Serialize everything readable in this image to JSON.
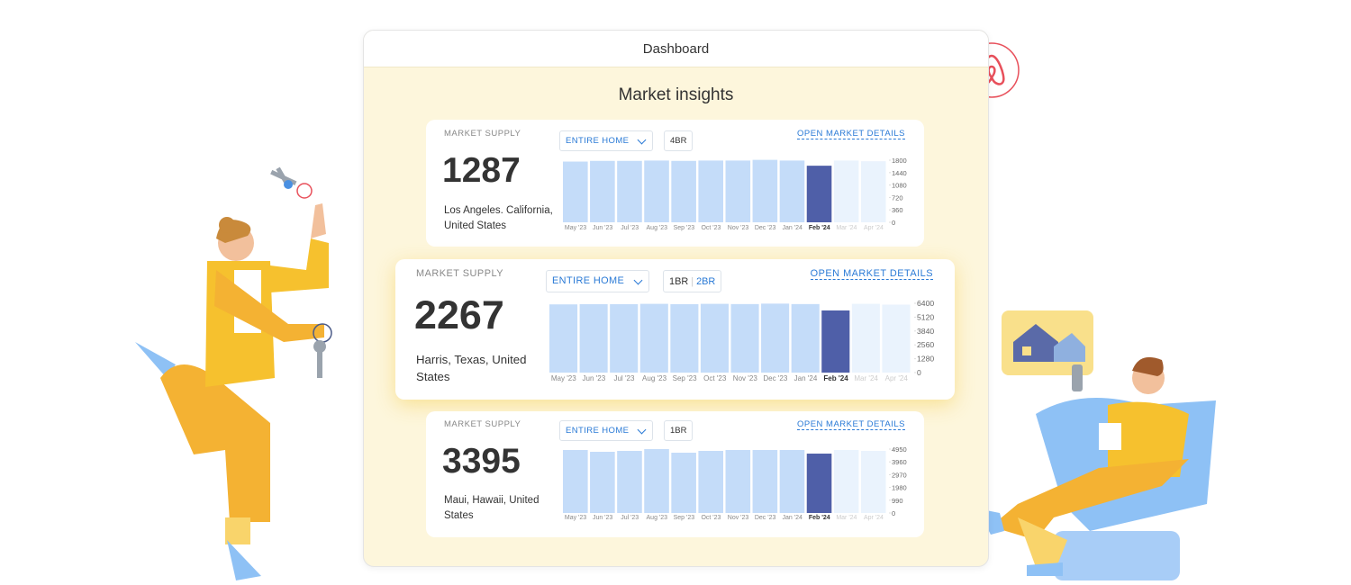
{
  "header": {
    "title": "Dashboard"
  },
  "section_title": "Market insights",
  "cards": [
    {
      "label": "MARKET SUPPLY",
      "value": "1287",
      "location": "Los Angeles. California, United States",
      "dropdown": "ENTIRE HOME",
      "bedrooms": [
        "4BR"
      ],
      "link": "OPEN MARKET DETAILS",
      "chart": {
        "type": "bar",
        "categories": [
          "May '23",
          "Jun '23",
          "Jul '23",
          "Aug '23",
          "Sep '23",
          "Oct '23",
          "Nov '23",
          "Dec '23",
          "Jan '24",
          "Feb '24",
          "Mar '24",
          "Apr '24"
        ],
        "values": [
          1760,
          1780,
          1780,
          1790,
          1780,
          1790,
          1790,
          1810,
          1790,
          1640,
          1790,
          1770
        ],
        "bar_colors": [
          "#c4dcf9",
          "#c4dcf9",
          "#c4dcf9",
          "#c4dcf9",
          "#c4dcf9",
          "#c4dcf9",
          "#c4dcf9",
          "#c4dcf9",
          "#c4dcf9",
          "#4f5fa8",
          "#eaf3fd",
          "#eaf3fd"
        ],
        "ylim": [
          0,
          1800
        ],
        "yticks": [
          0,
          360,
          720,
          1080,
          1440,
          1800
        ]
      }
    },
    {
      "label": "MARKET SUPPLY",
      "value": "2267",
      "location": "Harris, Texas, United States",
      "dropdown": "ENTIRE HOME",
      "bedrooms": [
        "1BR",
        "2BR"
      ],
      "link": "OPEN MARKET DETAILS",
      "chart": {
        "type": "bar",
        "categories": [
          "May '23",
          "Jun '23",
          "Jul '23",
          "Aug '23",
          "Sep '23",
          "Oct '23",
          "Nov '23",
          "Dec '23",
          "Jan '24",
          "Feb '24",
          "Mar '24",
          "Apr '24"
        ],
        "values": [
          6300,
          6320,
          6320,
          6350,
          6320,
          6350,
          6330,
          6370,
          6330,
          5740,
          6350,
          6280
        ],
        "bar_colors": [
          "#c4dcf9",
          "#c4dcf9",
          "#c4dcf9",
          "#c4dcf9",
          "#c4dcf9",
          "#c4dcf9",
          "#c4dcf9",
          "#c4dcf9",
          "#c4dcf9",
          "#4f5fa8",
          "#eaf3fd",
          "#eaf3fd"
        ],
        "ylim": [
          0,
          6400
        ],
        "yticks": [
          0,
          1280,
          2560,
          3840,
          5120,
          6400
        ]
      }
    },
    {
      "label": "MARKET SUPPLY",
      "value": "3395",
      "location": "Maui, Hawaii, United States",
      "dropdown": "ENTIRE HOME",
      "bedrooms": [
        "1BR"
      ],
      "link": "OPEN MARKET DETAILS",
      "chart": {
        "type": "bar",
        "categories": [
          "May '23",
          "Jun '23",
          "Jul '23",
          "Aug '23",
          "Sep '23",
          "Oct '23",
          "Nov '23",
          "Dec '23",
          "Jan '24",
          "Feb '24",
          "Mar '24",
          "Apr '24"
        ],
        "values": [
          4880,
          4740,
          4810,
          4950,
          4670,
          4810,
          4880,
          4880,
          4880,
          4600,
          4880,
          4810
        ],
        "bar_colors": [
          "#c4dcf9",
          "#c4dcf9",
          "#c4dcf9",
          "#c4dcf9",
          "#c4dcf9",
          "#c4dcf9",
          "#c4dcf9",
          "#c4dcf9",
          "#c4dcf9",
          "#4f5fa8",
          "#eaf3fd",
          "#eaf3fd"
        ],
        "ylim": [
          0,
          4950
        ],
        "yticks": [
          0,
          990,
          1980,
          2970,
          3960,
          4950
        ]
      }
    }
  ]
}
